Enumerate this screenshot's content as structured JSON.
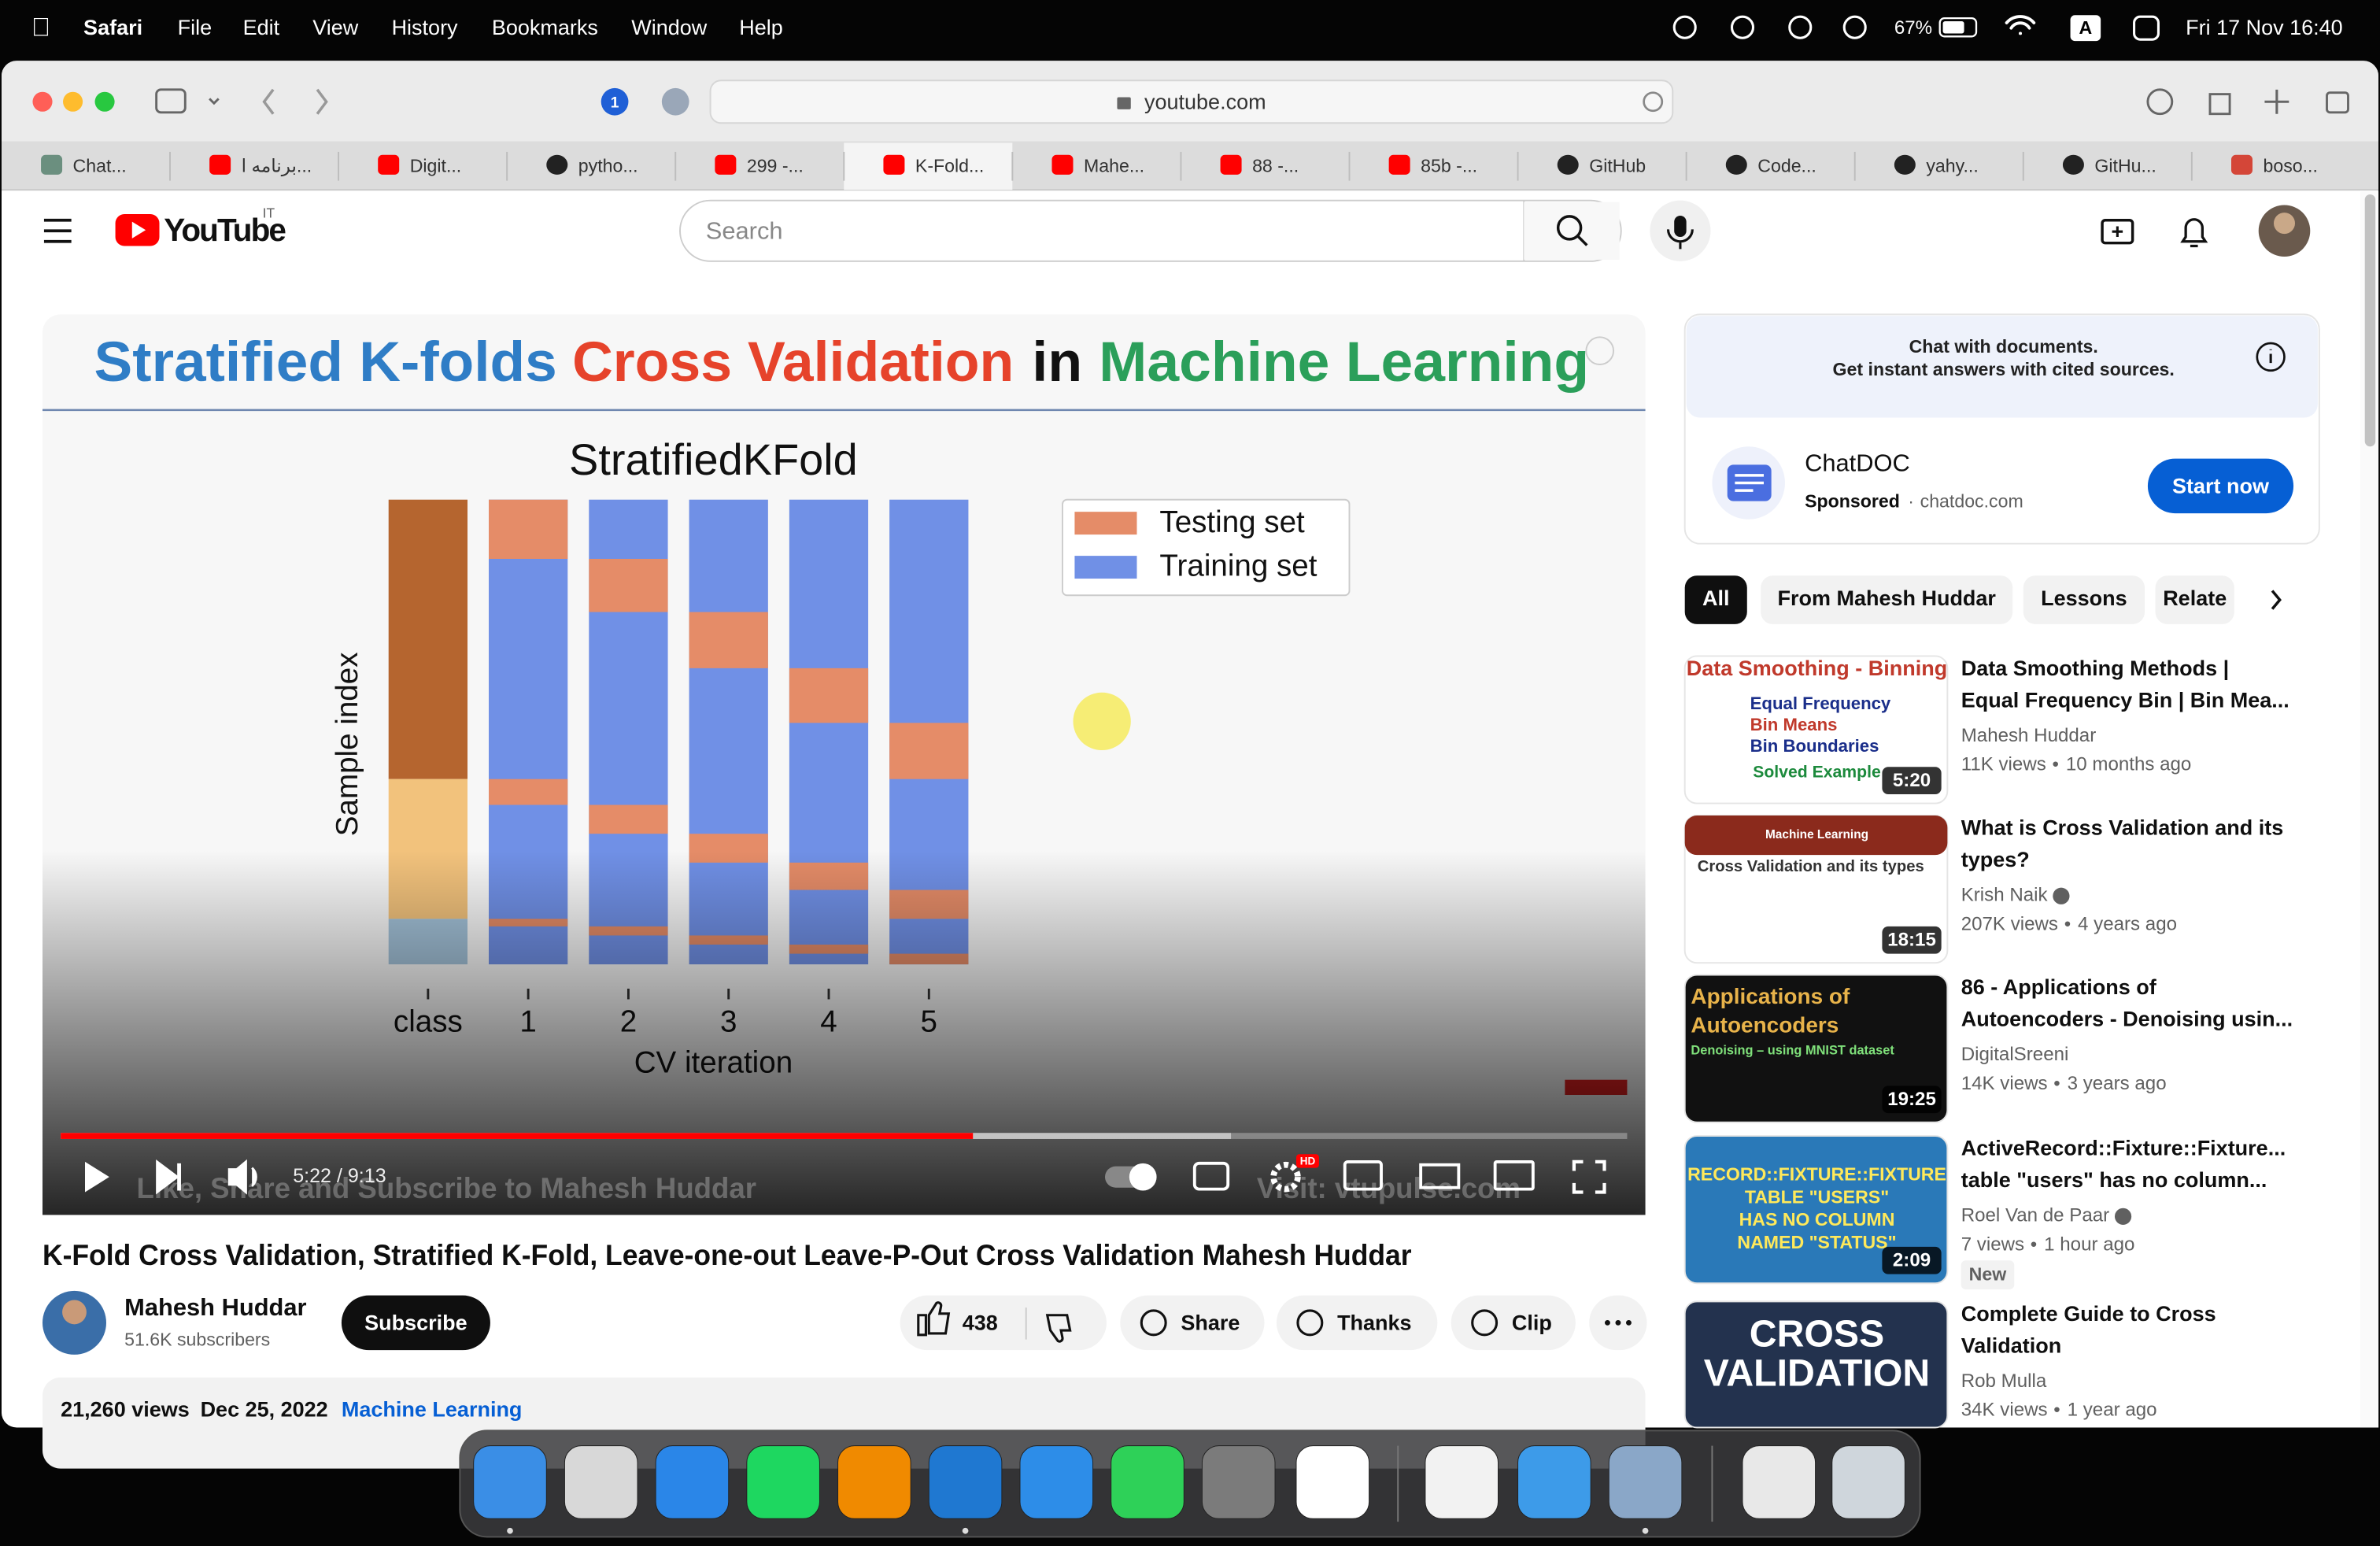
{
  "menu_bar": {
    "app": "Safari",
    "items": [
      "File",
      "Edit",
      "View",
      "History",
      "Bookmarks",
      "Window",
      "Help"
    ],
    "keyboard": "A",
    "battery": "67%",
    "clock": "Fri 17 Nov  16:40"
  },
  "browser": {
    "tab_badge": "1",
    "address": "youtube.com",
    "tabs": [
      "Chat...",
      "برنامه ا...",
      "Digit...",
      "pytho...",
      "299 -...",
      "K-Fold...",
      "Mahe...",
      "88 -...",
      "85b -...",
      "GitHub",
      "Code...",
      "yahy...",
      "GitHu...",
      "boso..."
    ]
  },
  "header": {
    "logo": "YouTube",
    "country": "IT",
    "search": "Search"
  },
  "player": {
    "slide": {
      "title": [
        "Stratified K-folds",
        "Cross Validation",
        "in",
        "Machine Learning"
      ],
      "chart_title": "StratifiedKFold",
      "y_label": "Sample index",
      "x_label": "CV iteration",
      "x_ticks": [
        "class",
        "1",
        "2",
        "3",
        "4",
        "5"
      ],
      "legend": [
        "Testing set",
        "Training set"
      ]
    },
    "watermark": "Like, Share and Subscribe to Mahesh Huddar",
    "website": "Visit: vtupulse.com",
    "time": "5:22 / 9:13",
    "quality": "HD"
  },
  "video": {
    "title": "K-Fold Cross Validation, Stratified K-Fold, Leave-one-out Leave-P-Out Cross Validation Mahesh Huddar",
    "channel": "Mahesh Huddar",
    "subscribers": "51.6K subscribers",
    "subscribe": "Subscribe",
    "likes": "438",
    "actions": [
      "Share",
      "Thanks",
      "Clip"
    ],
    "views": "21,260 views",
    "date": "Dec 25, 2022",
    "hashtag": "Machine Learning"
  },
  "ad": {
    "headline": "Chat with documents.",
    "subline": "Get instant answers with cited sources.",
    "name": "ChatDOC",
    "sponsored": "Sponsored",
    "domain": "chatdoc.com",
    "cta": "Start now"
  },
  "chips": [
    "All",
    "From Mahesh Huddar",
    "Lessons",
    "Relate"
  ],
  "recommendations": [
    {
      "thumb": [
        "Data Smoothing - Binning",
        "Equal Frequency",
        "Bin Means",
        "Bin Boundaries",
        "Solved Example"
      ],
      "duration": "5:20",
      "title": [
        "Data Smoothing Methods |",
        "Equal Frequency Bin | Bin Mea..."
      ],
      "channel": "Mahesh Huddar",
      "views": "11K views",
      "age": "10 months ago"
    },
    {
      "thumb": [
        "Machine Learning",
        "Cross Validation and its types"
      ],
      "duration": "18:15",
      "title": [
        "What is Cross Validation and its",
        "types?"
      ],
      "channel": "Krish Naik",
      "views": "207K views",
      "age": "4 years ago"
    },
    {
      "thumb": [
        "Applications of",
        "Autoencoders",
        "Denoising – using MNIST dataset"
      ],
      "duration": "19:25",
      "title": [
        "86 - Applications of",
        "Autoencoders - Denoising usin..."
      ],
      "channel": "DigitalSreeni",
      "views": "14K views",
      "age": "3 years ago"
    },
    {
      "thumb": [
        "RECORD::FIXTURE::FIXTURE",
        "TABLE \"USERS\"",
        "HAS NO COLUMN",
        "NAMED \"STATUS\""
      ],
      "duration": "2:09",
      "title": [
        "ActiveRecord::Fixture::Fixture...",
        "table \"users\" has no column..."
      ],
      "channel": "Roel Van de Paar",
      "views": "7 views",
      "age": "1 hour ago",
      "badge": "New"
    },
    {
      "thumb": [
        "CROSS",
        "VALIDATION"
      ],
      "title": [
        "Complete Guide to Cross",
        "Validation"
      ],
      "channel": "Rob Mulla",
      "views": "34K views",
      "age": "1 year ago"
    }
  ]
}
